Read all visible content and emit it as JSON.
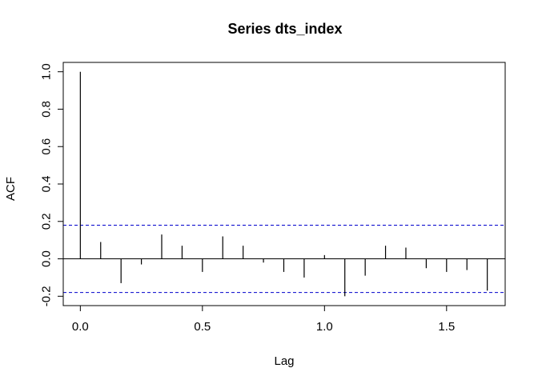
{
  "chart_data": {
    "type": "bar",
    "title": "Series  dts_index",
    "xlabel": "Lag",
    "ylabel": "ACF",
    "xlim": [
      -0.07,
      1.74
    ],
    "ylim": [
      -0.25,
      1.05
    ],
    "xticks": [
      0.0,
      0.5,
      1.0,
      1.5
    ],
    "xtick_labels": [
      "0.0",
      "0.5",
      "1.0",
      "1.5"
    ],
    "yticks": [
      -0.2,
      0.0,
      0.2,
      0.4,
      0.6,
      0.8,
      1.0
    ],
    "ytick_labels": [
      "-0.2",
      "0.0",
      "0.2",
      "0.4",
      "0.6",
      "0.8",
      "1.0"
    ],
    "confidence_bound": 0.18,
    "zero_line": true,
    "grid": false,
    "lags": [
      0.0,
      0.0833,
      0.1667,
      0.25,
      0.3333,
      0.4167,
      0.5,
      0.5833,
      0.6667,
      0.75,
      0.8333,
      0.9167,
      1.0,
      1.0833,
      1.1667,
      1.25,
      1.3333,
      1.4167,
      1.5,
      1.5833,
      1.6667
    ],
    "acf": [
      1.0,
      0.09,
      -0.13,
      -0.03,
      0.13,
      0.07,
      -0.07,
      0.12,
      0.07,
      -0.02,
      -0.07,
      -0.1,
      0.02,
      -0.2,
      -0.09,
      0.07,
      0.06,
      -0.05,
      -0.07,
      -0.06,
      -0.17
    ]
  }
}
